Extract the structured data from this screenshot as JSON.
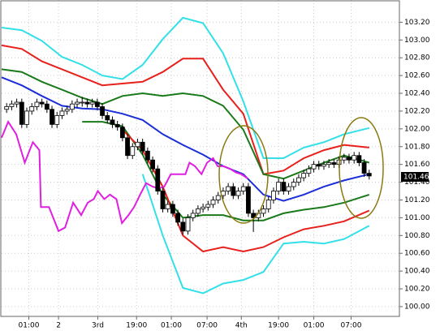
{
  "chart_data": {
    "type": "candlestick",
    "xlim": [
      -1,
      78
    ],
    "ylim": [
      99.89,
      103.45
    ],
    "yticks": [
      {
        "value": 100.0,
        "label": "100.00"
      },
      {
        "value": 100.2,
        "label": "100.20"
      },
      {
        "value": 100.4,
        "label": "100.40"
      },
      {
        "value": 100.6,
        "label": "100.60"
      },
      {
        "value": 100.8,
        "label": "100.80"
      },
      {
        "value": 101.0,
        "label": "101.00"
      },
      {
        "value": 101.2,
        "label": "101.20"
      },
      {
        "value": 101.4,
        "label": "101.40"
      },
      {
        "value": 101.6,
        "label": "101.60"
      },
      {
        "value": 101.8,
        "label": "101.80"
      },
      {
        "value": 102.0,
        "label": "102.00"
      },
      {
        "value": 102.2,
        "label": "102.20"
      },
      {
        "value": 102.4,
        "label": "102.40"
      },
      {
        "value": 102.6,
        "label": "102.60"
      },
      {
        "value": 102.8,
        "label": "102.80"
      },
      {
        "value": 103.0,
        "label": "103.00"
      },
      {
        "value": 103.2,
        "label": "103.20"
      }
    ],
    "xticks": [
      {
        "value": 4.4,
        "label": "01:00"
      },
      {
        "value": 10.3,
        "label": "2"
      },
      {
        "value": 18.1,
        "label": "3rd"
      },
      {
        "value": 25.8,
        "label": "19:00"
      },
      {
        "value": 32.7,
        "label": "01:00"
      },
      {
        "value": 39.8,
        "label": "07:00"
      },
      {
        "value": 46.6,
        "label": "4th"
      },
      {
        "value": 54.0,
        "label": "19:00"
      },
      {
        "value": 61.0,
        "label": "01:00"
      },
      {
        "value": 68.4,
        "label": "07:00"
      }
    ],
    "grid": true,
    "last_price": {
      "value": 101.46,
      "label": "101.46"
    },
    "open": [
      102.22,
      102.25,
      102.28,
      102.3,
      102.05,
      102.2,
      102.25,
      102.3,
      102.28,
      102.22,
      102.05,
      102.15,
      102.2,
      102.22,
      102.28,
      102.3,
      102.3,
      102.28,
      102.3,
      102.25,
      102.15,
      102.1,
      102.05,
      102.02,
      101.9,
      101.7,
      101.8,
      101.85,
      101.75,
      101.65,
      101.55,
      101.3,
      101.1,
      101.15,
      101.05,
      100.95,
      100.85,
      101.0,
      101.05,
      101.1,
      101.12,
      101.15,
      101.2,
      101.25,
      101.3,
      101.35,
      101.25,
      101.3,
      101.35,
      101.05,
      101.0,
      101.05,
      101.1,
      101.2,
      101.3,
      101.4,
      101.3,
      101.35,
      101.4,
      101.45,
      101.5,
      101.55,
      101.6,
      101.58,
      101.6,
      101.62,
      101.6,
      101.65,
      101.68,
      101.65,
      101.7,
      101.62,
      101.5
    ],
    "high": [
      102.29,
      102.32,
      102.34,
      102.34,
      102.24,
      102.29,
      102.34,
      102.34,
      102.32,
      102.26,
      102.19,
      102.24,
      102.26,
      102.32,
      102.34,
      102.36,
      102.34,
      102.34,
      102.34,
      102.29,
      102.19,
      102.14,
      102.09,
      102.06,
      101.94,
      101.84,
      101.89,
      101.89,
      101.79,
      101.69,
      101.59,
      101.34,
      101.19,
      101.19,
      101.09,
      100.99,
      101.04,
      101.09,
      101.14,
      101.16,
      101.19,
      101.24,
      101.29,
      101.34,
      101.39,
      101.39,
      101.34,
      101.39,
      101.39,
      101.09,
      101.09,
      101.14,
      101.24,
      101.34,
      101.44,
      101.44,
      101.39,
      101.44,
      101.49,
      101.54,
      101.59,
      101.64,
      101.64,
      101.64,
      101.66,
      101.66,
      101.69,
      101.72,
      101.72,
      101.74,
      101.74,
      101.66,
      101.54
    ],
    "low": [
      102.18,
      102.21,
      102.24,
      102.01,
      102.01,
      102.16,
      102.21,
      102.24,
      102.18,
      102.01,
      102.01,
      102.11,
      102.16,
      102.18,
      102.24,
      102.25,
      102.24,
      102.24,
      102.21,
      102.11,
      102.06,
      102.01,
      101.98,
      101.86,
      101.66,
      101.66,
      101.76,
      101.71,
      101.61,
      101.51,
      101.26,
      101.06,
      101.06,
      101.01,
      100.91,
      100.81,
      100.81,
      100.96,
      101.01,
      101.06,
      101.08,
      101.11,
      101.16,
      101.21,
      101.26,
      101.21,
      101.21,
      101.26,
      101.01,
      100.84,
      100.96,
      101.01,
      101.06,
      101.16,
      101.26,
      101.26,
      101.26,
      101.31,
      101.36,
      101.41,
      101.46,
      101.51,
      101.54,
      101.54,
      101.56,
      101.56,
      101.56,
      101.61,
      101.61,
      101.61,
      101.58,
      101.46,
      101.43
    ],
    "close": [
      102.25,
      102.28,
      102.3,
      102.05,
      102.2,
      102.25,
      102.3,
      102.28,
      102.22,
      102.05,
      102.15,
      102.2,
      102.22,
      102.28,
      102.3,
      102.3,
      102.28,
      102.3,
      102.25,
      102.15,
      102.1,
      102.05,
      102.02,
      101.9,
      101.7,
      101.8,
      101.85,
      101.75,
      101.65,
      101.55,
      101.3,
      101.1,
      101.15,
      101.05,
      100.95,
      100.85,
      101.0,
      101.05,
      101.1,
      101.12,
      101.15,
      101.2,
      101.25,
      101.3,
      101.35,
      101.25,
      101.3,
      101.35,
      101.05,
      101.0,
      101.05,
      101.1,
      101.2,
      101.3,
      101.4,
      101.3,
      101.35,
      101.4,
      101.45,
      101.5,
      101.55,
      101.6,
      101.58,
      101.6,
      101.62,
      101.6,
      101.65,
      101.68,
      101.65,
      101.7,
      101.62,
      101.5,
      101.47
    ],
    "lines": [
      {
        "color": "#33e0e8",
        "x": [
          -1,
          3,
          7,
          11,
          15,
          19,
          23,
          27,
          31,
          35,
          39,
          43,
          47,
          51,
          55,
          59,
          63,
          67,
          72
        ],
        "values": [
          103.14,
          103.11,
          102.99,
          102.81,
          102.72,
          102.6,
          102.56,
          102.72,
          103.01,
          103.25,
          103.19,
          102.85,
          102.31,
          101.67,
          101.67,
          101.79,
          101.85,
          101.94,
          102.01
        ]
      },
      {
        "color": "#e8201c",
        "x": [
          -1,
          3,
          7,
          11,
          15,
          19,
          23,
          27,
          31,
          35,
          39,
          43,
          47,
          51,
          55,
          59,
          63,
          67,
          72
        ],
        "values": [
          102.94,
          102.9,
          102.76,
          102.67,
          102.58,
          102.49,
          102.51,
          102.53,
          102.64,
          102.79,
          102.79,
          102.44,
          102.17,
          101.49,
          101.53,
          101.67,
          101.76,
          101.82,
          101.79
        ]
      },
      {
        "color": "#1a7a1a",
        "x": [
          -1,
          3,
          7,
          11,
          15,
          19,
          23,
          27,
          31,
          35,
          39,
          43,
          47,
          51,
          55,
          59,
          63,
          67,
          72
        ],
        "values": [
          102.67,
          102.64,
          102.53,
          102.44,
          102.35,
          102.28,
          102.37,
          102.4,
          102.37,
          102.4,
          102.37,
          102.26,
          101.99,
          101.49,
          101.44,
          101.53,
          101.62,
          101.7,
          101.62
        ]
      },
      {
        "color": "#1c2ed8",
        "x": [
          -1,
          3,
          7,
          11,
          15,
          19,
          23,
          27,
          31,
          35,
          39,
          43,
          47,
          51,
          55,
          59,
          63,
          67,
          72
        ],
        "values": [
          102.58,
          102.49,
          102.37,
          102.26,
          102.23,
          102.22,
          102.17,
          102.1,
          101.94,
          101.82,
          101.71,
          101.58,
          101.49,
          101.26,
          101.19,
          101.26,
          101.35,
          101.42,
          101.49
        ]
      },
      {
        "color": "#1a7a1a",
        "x": [
          -1,
          3,
          7,
          11,
          15,
          19,
          23,
          27,
          31,
          35,
          39,
          43,
          47,
          51,
          55,
          59,
          63,
          67,
          72
        ],
        "values": [
          null,
          null,
          null,
          null,
          102.08,
          102.08,
          102.03,
          101.71,
          101.26,
          101.0,
          101.03,
          101.03,
          100.97,
          100.97,
          101.05,
          101.09,
          101.12,
          101.17,
          101.26
        ]
      },
      {
        "color": "#e8201c",
        "x": [
          -1,
          3,
          7,
          11,
          15,
          19,
          23,
          27,
          31,
          35,
          39,
          43,
          47,
          51,
          55,
          59,
          63,
          67,
          72
        ],
        "values": [
          null,
          null,
          null,
          null,
          null,
          null,
          101.99,
          101.76,
          101.35,
          100.8,
          100.62,
          100.67,
          100.62,
          100.67,
          100.78,
          100.87,
          100.91,
          100.96,
          101.08
        ]
      },
      {
        "color": "#33e0e8",
        "x": [
          -1,
          3,
          7,
          11,
          15,
          19,
          23,
          27,
          31,
          35,
          39,
          43,
          47,
          51,
          55,
          59,
          63,
          67,
          72
        ],
        "values": [
          null,
          null,
          null,
          null,
          null,
          null,
          null,
          101.49,
          100.8,
          100.21,
          100.15,
          100.26,
          100.3,
          100.39,
          100.71,
          100.73,
          100.71,
          100.76,
          100.91
        ]
      },
      {
        "color": "#e020e0",
        "x": [
          -1,
          0.3,
          1.9,
          3.6,
          5.2,
          6.5,
          6.8,
          8.4,
          10.3,
          11.6,
          13.2,
          14.8,
          16.1,
          17.3,
          18.1,
          19.4,
          20.5,
          21.8,
          22.9,
          24.2,
          25.3,
          26.5,
          27.7,
          29.0,
          30.2,
          31.3,
          32.6,
          33.9,
          35.5,
          36.3,
          37.4,
          38.7,
          39.8,
          41.0,
          41.9,
          43.1,
          44.4,
          45.5,
          46.6,
          47.9
        ],
        "values": [
          101.9,
          102.08,
          101.94,
          101.62,
          101.85,
          101.76,
          101.12,
          101.12,
          100.85,
          100.89,
          101.17,
          101.03,
          101.17,
          101.21,
          101.3,
          101.21,
          101.26,
          101.21,
          100.94,
          101.03,
          101.12,
          101.26,
          101.39,
          101.35,
          101.33,
          101.35,
          101.49,
          101.49,
          101.49,
          101.62,
          101.58,
          101.49,
          101.62,
          101.67,
          101.58,
          101.58,
          101.55,
          101.51,
          101.49,
          101.44
        ]
      }
    ]
  }
}
